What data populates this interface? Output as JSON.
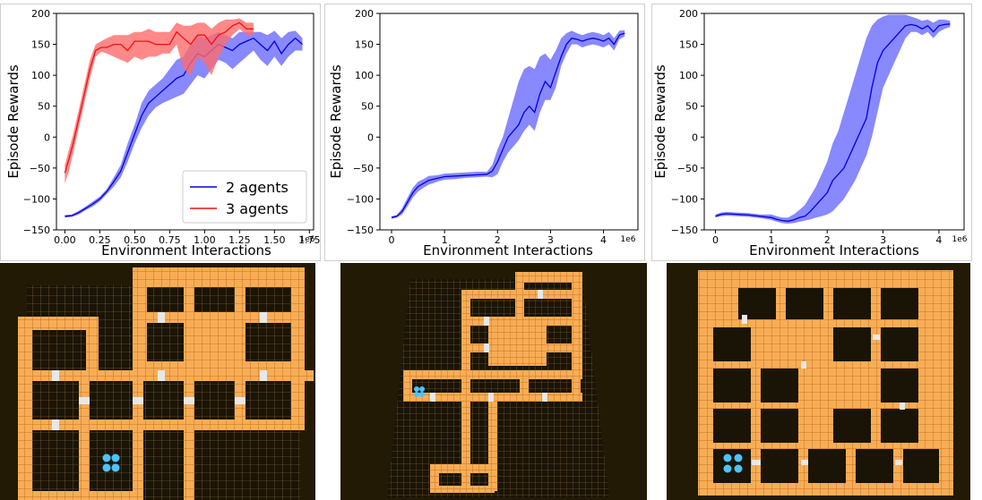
{
  "colors": {
    "blue": "#0000dd",
    "blue_band": "#6a6aff",
    "red": "#ee1111",
    "red_band": "#ff6b6b",
    "map_bg": "#221a05",
    "wall": "#f5a64e",
    "grid": "#d9a25a",
    "agent": "#4cc3ff"
  },
  "chart_data": [
    {
      "type": "line",
      "xlabel": "Environment Interactions",
      "ylabel": "Episode Rewards",
      "x_scale_label": "1e6",
      "xlim": [
        -0.06,
        1.78
      ],
      "ylim": [
        -150,
        200
      ],
      "xticks": [
        0.0,
        0.25,
        0.5,
        0.75,
        1.0,
        1.25,
        1.5,
        1.75
      ],
      "xtick_labels": [
        "0.00",
        "0.25",
        "0.50",
        "0.75",
        "1.00",
        "1.25",
        "1.50",
        "1.75"
      ],
      "yticks": [
        -150,
        -100,
        -50,
        0,
        50,
        100,
        150,
        200
      ],
      "ytick_labels": [
        "−150",
        "−100",
        "−50",
        "0",
        "50",
        "100",
        "150",
        "200"
      ],
      "grid": false,
      "legend_position": "lower-right",
      "series": [
        {
          "name": "2 agents",
          "color": "blue",
          "x": [
            0,
            0.05,
            0.1,
            0.15,
            0.2,
            0.25,
            0.3,
            0.35,
            0.4,
            0.45,
            0.5,
            0.55,
            0.6,
            0.65,
            0.7,
            0.75,
            0.8,
            0.85,
            0.9,
            0.95,
            1.0,
            1.05,
            1.1,
            1.15,
            1.2,
            1.25,
            1.3,
            1.35,
            1.4,
            1.45,
            1.5,
            1.55,
            1.6,
            1.65,
            1.7
          ],
          "y": [
            -128,
            -127,
            -122,
            -115,
            -108,
            -100,
            -88,
            -72,
            -55,
            -25,
            5,
            35,
            55,
            65,
            75,
            85,
            95,
            100,
            120,
            135,
            130,
            140,
            150,
            145,
            140,
            150,
            155,
            160,
            150,
            140,
            155,
            135,
            150,
            160,
            150
          ],
          "lower": [
            -130,
            -129,
            -125,
            -118,
            -112,
            -104,
            -92,
            -80,
            -65,
            -40,
            -10,
            15,
            35,
            48,
            55,
            60,
            65,
            70,
            85,
            100,
            95,
            110,
            125,
            120,
            110,
            120,
            130,
            140,
            125,
            115,
            130,
            115,
            130,
            140,
            140
          ],
          "upper": [
            -126,
            -125,
            -119,
            -112,
            -104,
            -96,
            -84,
            -65,
            -45,
            -10,
            20,
            55,
            75,
            85,
            95,
            110,
            125,
            130,
            150,
            165,
            160,
            165,
            170,
            165,
            160,
            170,
            170,
            170,
            170,
            165,
            172,
            160,
            170,
            172,
            160
          ]
        },
        {
          "name": "3 agents",
          "color": "red",
          "x": [
            0,
            0.03,
            0.06,
            0.1,
            0.14,
            0.18,
            0.22,
            0.26,
            0.3,
            0.35,
            0.4,
            0.45,
            0.5,
            0.55,
            0.6,
            0.65,
            0.7,
            0.75,
            0.8,
            0.85,
            0.9,
            0.95,
            1.0,
            1.05,
            1.1,
            1.15,
            1.2,
            1.25,
            1.3,
            1.35
          ],
          "y": [
            -58,
            -35,
            -10,
            30,
            70,
            110,
            140,
            145,
            145,
            150,
            150,
            140,
            155,
            155,
            155,
            150,
            150,
            150,
            170,
            160,
            150,
            165,
            165,
            150,
            165,
            170,
            180,
            185,
            175,
            175
          ],
          "lower": [
            -75,
            -55,
            -25,
            15,
            55,
            95,
            130,
            138,
            135,
            130,
            125,
            120,
            130,
            125,
            130,
            130,
            135,
            135,
            150,
            110,
            100,
            130,
            120,
            100,
            130,
            150,
            165,
            175,
            165,
            165
          ],
          "upper": [
            -45,
            -20,
            5,
            45,
            85,
            125,
            150,
            155,
            160,
            165,
            165,
            165,
            170,
            170,
            175,
            170,
            170,
            170,
            185,
            180,
            180,
            185,
            185,
            175,
            185,
            190,
            190,
            192,
            185,
            185
          ]
        }
      ]
    },
    {
      "type": "line",
      "xlabel": "Environment Interactions",
      "ylabel": "Episode Rewards",
      "x_scale_label": "1e6",
      "xlim": [
        -0.22,
        4.65
      ],
      "ylim": [
        -150,
        200
      ],
      "xticks": [
        0,
        1,
        2,
        3,
        4
      ],
      "xtick_labels": [
        "0",
        "1",
        "2",
        "3",
        "4"
      ],
      "yticks": [
        -150,
        -100,
        -50,
        0,
        50,
        100,
        150,
        200
      ],
      "ytick_labels": [
        "−150",
        "−100",
        "−50",
        "0",
        "50",
        "100",
        "150",
        "200"
      ],
      "grid": false,
      "series": [
        {
          "color": "blue",
          "x": [
            0,
            0.1,
            0.2,
            0.3,
            0.4,
            0.5,
            0.6,
            0.7,
            0.8,
            0.9,
            1.0,
            1.2,
            1.4,
            1.6,
            1.8,
            1.9,
            2.0,
            2.1,
            2.2,
            2.3,
            2.4,
            2.5,
            2.6,
            2.7,
            2.8,
            2.9,
            3.0,
            3.1,
            3.2,
            3.3,
            3.4,
            3.5,
            3.6,
            3.7,
            3.8,
            3.9,
            4.0,
            4.1,
            4.2,
            4.3,
            4.4
          ],
          "y": [
            -130,
            -128,
            -120,
            -105,
            -90,
            -80,
            -75,
            -70,
            -68,
            -66,
            -64,
            -63,
            -62,
            -61,
            -60,
            -55,
            -40,
            -20,
            0,
            10,
            20,
            40,
            50,
            40,
            70,
            90,
            80,
            105,
            130,
            150,
            160,
            158,
            155,
            158,
            160,
            158,
            155,
            160,
            150,
            165,
            168
          ],
          "lower": [
            -132,
            -130,
            -125,
            -112,
            -98,
            -88,
            -82,
            -77,
            -74,
            -71,
            -69,
            -68,
            -66,
            -65,
            -64,
            -65,
            -60,
            -40,
            -25,
            -15,
            -5,
            10,
            20,
            10,
            40,
            60,
            60,
            80,
            115,
            135,
            150,
            150,
            145,
            148,
            150,
            148,
            145,
            150,
            140,
            158,
            163
          ],
          "upper": [
            -128,
            -126,
            -115,
            -98,
            -82,
            -72,
            -68,
            -63,
            -62,
            -61,
            -59,
            -58,
            -57,
            -56,
            -56,
            -45,
            -20,
            0,
            30,
            60,
            90,
            110,
            115,
            110,
            130,
            135,
            125,
            140,
            160,
            168,
            172,
            168,
            165,
            168,
            170,
            168,
            165,
            170,
            160,
            172,
            173
          ]
        }
      ]
    },
    {
      "type": "line",
      "xlabel": "Environment Interactions",
      "ylabel": "Episode Rewards",
      "x_scale_label": "1e6",
      "xlim": [
        -0.2,
        4.45
      ],
      "ylim": [
        -150,
        200
      ],
      "xticks": [
        0,
        1,
        2,
        3,
        4
      ],
      "xtick_labels": [
        "0",
        "1",
        "2",
        "3",
        "4"
      ],
      "yticks": [
        -150,
        -100,
        -50,
        0,
        50,
        100,
        150,
        200
      ],
      "ytick_labels": [
        "−150",
        "−100",
        "−50",
        "0",
        "50",
        "100",
        "150",
        "200"
      ],
      "grid": false,
      "series": [
        {
          "color": "blue",
          "x": [
            0,
            0.1,
            0.2,
            0.4,
            0.6,
            0.8,
            1.0,
            1.1,
            1.2,
            1.3,
            1.4,
            1.5,
            1.6,
            1.7,
            1.8,
            1.9,
            2.0,
            2.1,
            2.2,
            2.3,
            2.4,
            2.5,
            2.6,
            2.7,
            2.8,
            2.9,
            3.0,
            3.1,
            3.2,
            3.3,
            3.4,
            3.5,
            3.6,
            3.7,
            3.8,
            3.9,
            4.0,
            4.1,
            4.2
          ],
          "y": [
            -128,
            -125,
            -124,
            -125,
            -126,
            -128,
            -130,
            -133,
            -135,
            -136,
            -134,
            -130,
            -128,
            -120,
            -110,
            -100,
            -90,
            -70,
            -60,
            -50,
            -30,
            -10,
            10,
            30,
            80,
            120,
            140,
            150,
            160,
            170,
            180,
            182,
            180,
            175,
            180,
            170,
            180,
            182,
            183
          ],
          "lower": [
            -130,
            -128,
            -127,
            -128,
            -129,
            -131,
            -134,
            -137,
            -139,
            -140,
            -139,
            -137,
            -135,
            -133,
            -130,
            -128,
            -125,
            -120,
            -110,
            -100,
            -85,
            -70,
            -50,
            -30,
            0,
            40,
            80,
            100,
            120,
            140,
            160,
            170,
            170,
            165,
            170,
            160,
            170,
            175,
            178
          ],
          "upper": [
            -125,
            -122,
            -121,
            -122,
            -123,
            -125,
            -125,
            -128,
            -130,
            -130,
            -125,
            -118,
            -110,
            -95,
            -80,
            -60,
            -40,
            -10,
            10,
            40,
            70,
            100,
            130,
            160,
            180,
            190,
            195,
            198,
            198,
            198,
            198,
            195,
            192,
            188,
            190,
            185,
            190,
            190,
            188
          ]
        }
      ]
    }
  ]
}
